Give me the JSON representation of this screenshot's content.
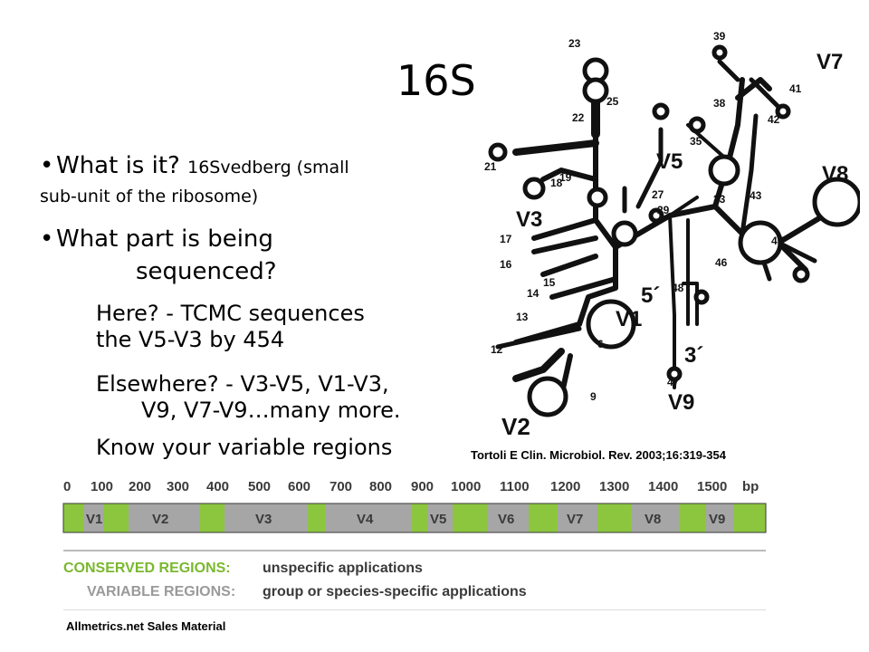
{
  "title": "16S",
  "bullets": {
    "q1": "What is it?",
    "q1_detail_line1": "16Svedberg (small",
    "q1_detail_line2": "sub-unit of the ribosome)",
    "q2_line1": "What part is being",
    "q2_line2": "sequenced?",
    "sub1_line1": "Here? - TCMC sequences",
    "sub1_line2": "the V5-V3 by 454",
    "sub2_line1": "Elsewhere? - V3-V5, V1-V3,",
    "sub2_line2": "V9, V7-V9…many more.",
    "sub3": "Know your variable regions"
  },
  "diagram": {
    "helix_numbers": [
      "23",
      "25",
      "22",
      "21",
      "19",
      "18",
      "17",
      "16",
      "15",
      "14",
      "13",
      "12",
      "6",
      "9",
      "39",
      "41",
      "42",
      "38",
      "35",
      "27",
      "29",
      "33",
      "43",
      "45",
      "46",
      "48",
      "47"
    ],
    "region_labels": [
      "V7",
      "V5",
      "V8",
      "V3",
      "5´",
      "V1",
      "3´",
      "V9",
      "V2"
    ]
  },
  "citation": "Tortoli E Clin. Microbiol. Rev. 2003;16:319-354",
  "gene_map": {
    "axis_ticks": [
      "0",
      "100",
      "200",
      "300",
      "400",
      "500",
      "600",
      "700",
      "800",
      "900",
      "1000",
      "1100",
      "1200",
      "1300",
      "1400",
      "1500"
    ],
    "unit": "bp",
    "regions": [
      "V1",
      "V2",
      "V3",
      "V4",
      "V5",
      "V6",
      "V7",
      "V8",
      "V9"
    ],
    "legend_conserved_label": "CONSERVED REGIONS:",
    "legend_conserved_text": "unspecific applications",
    "legend_variable_label": "VARIABLE REGIONS:",
    "legend_variable_text": "group or species-specific applications",
    "colors": {
      "conserved": "#8cc63f",
      "variable": "#a6a6a6",
      "conserved_text": "#7ab82e",
      "variable_text": "#9a9a9a",
      "dark": "#3a3a3a"
    }
  },
  "footer": "Allmetrics.net Sales Material"
}
